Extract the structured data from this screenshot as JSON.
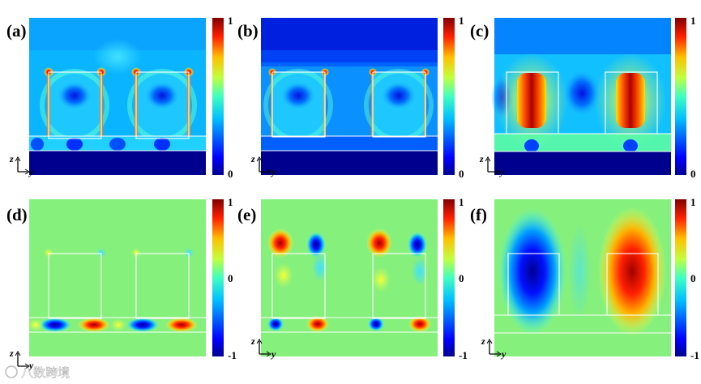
{
  "colormap": {
    "stops": [
      "#00008f",
      "#0000ff",
      "#0080ff",
      "#00ffff",
      "#80ff80",
      "#ffff00",
      "#ff8000",
      "#ff0000",
      "#800000"
    ]
  },
  "axis_labels": {
    "z": "z",
    "y": "y"
  },
  "watermark": "八数跨境",
  "panels": [
    {
      "label": "(a)",
      "colorbar_ticks": [
        "1",
        "0"
      ]
    },
    {
      "label": "(b)",
      "colorbar_ticks": [
        "1",
        "0"
      ]
    },
    {
      "label": "(c)",
      "colorbar_ticks": [
        "1",
        "0"
      ]
    },
    {
      "label": "(d)",
      "colorbar_ticks": [
        "1",
        "0",
        "-1"
      ]
    },
    {
      "label": "(e)",
      "colorbar_ticks": [
        "1",
        "0",
        "-1"
      ]
    },
    {
      "label": "(f)",
      "colorbar_ticks": [
        "1",
        "0",
        "-1"
      ]
    }
  ]
}
